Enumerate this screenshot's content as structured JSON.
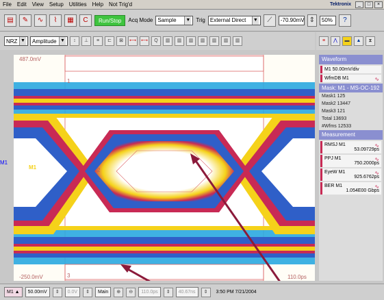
{
  "menubar": {
    "items": [
      "File",
      "Edit",
      "View",
      "Setup",
      "Utilities",
      "Help"
    ],
    "status": "Not Trig'd",
    "brand": "Tektronix"
  },
  "toolbar": {
    "run_stop": "Run/Stop",
    "acq_mode_label": "Acq Mode",
    "acq_mode_value": "Sample",
    "trig_label": "Trig",
    "trig_value": "External Direct",
    "trig_level": "-70.90mV",
    "zoom": "50%"
  },
  "toolbar2": {
    "nrz_value": "NRZ",
    "amplitude_value": "Amplitude"
  },
  "scope": {
    "top_label": "487.0mV",
    "bottom_label": "-250.0mV",
    "right_bottom_label": "110.0ps",
    "marker_1": "1",
    "marker_2": "2",
    "marker_3": "3",
    "ch_label": "M1",
    "ch_arrow": "M1"
  },
  "panel": {
    "waveform_header": "Waveform",
    "wave_item1": "M1 50.00mV/div",
    "wave_item2": "WfmDB M1",
    "mask_header": "Mask: M1 - MS-OC-192",
    "masks": [
      {
        "label": "Mask1",
        "value": "125"
      },
      {
        "label": "Mask2",
        "value": "13447"
      },
      {
        "label": "Mask3",
        "value": "121"
      },
      {
        "label": "Total",
        "value": "13693"
      },
      {
        "label": "#Wfms",
        "value": "12533"
      }
    ],
    "meas_header": "Measurement",
    "measurements": [
      {
        "name": "RMSJ M1",
        "value": "53.09729ps"
      },
      {
        "name": "PPJ   M1",
        "value": "750.2000ps"
      },
      {
        "name": "EyeW  M1",
        "value": "925.6762ps"
      },
      {
        "name": "BER   M1",
        "value": "1.054E00 Gbps"
      }
    ]
  },
  "bottom": {
    "ch": "M1",
    "scale": "50.00mV",
    "offset": "0.0V",
    "main": "Main",
    "timebase": "110.0ps",
    "pos": "40.67ns",
    "time": "3:50 PM 7/21/2004"
  },
  "colors": {
    "eye_hot": "#f5d21a",
    "eye_mid": "#c82a55",
    "eye_cool": "#2f5fc8",
    "eye_low": "#2aa8e0",
    "arrow": "#8b1a3a"
  }
}
